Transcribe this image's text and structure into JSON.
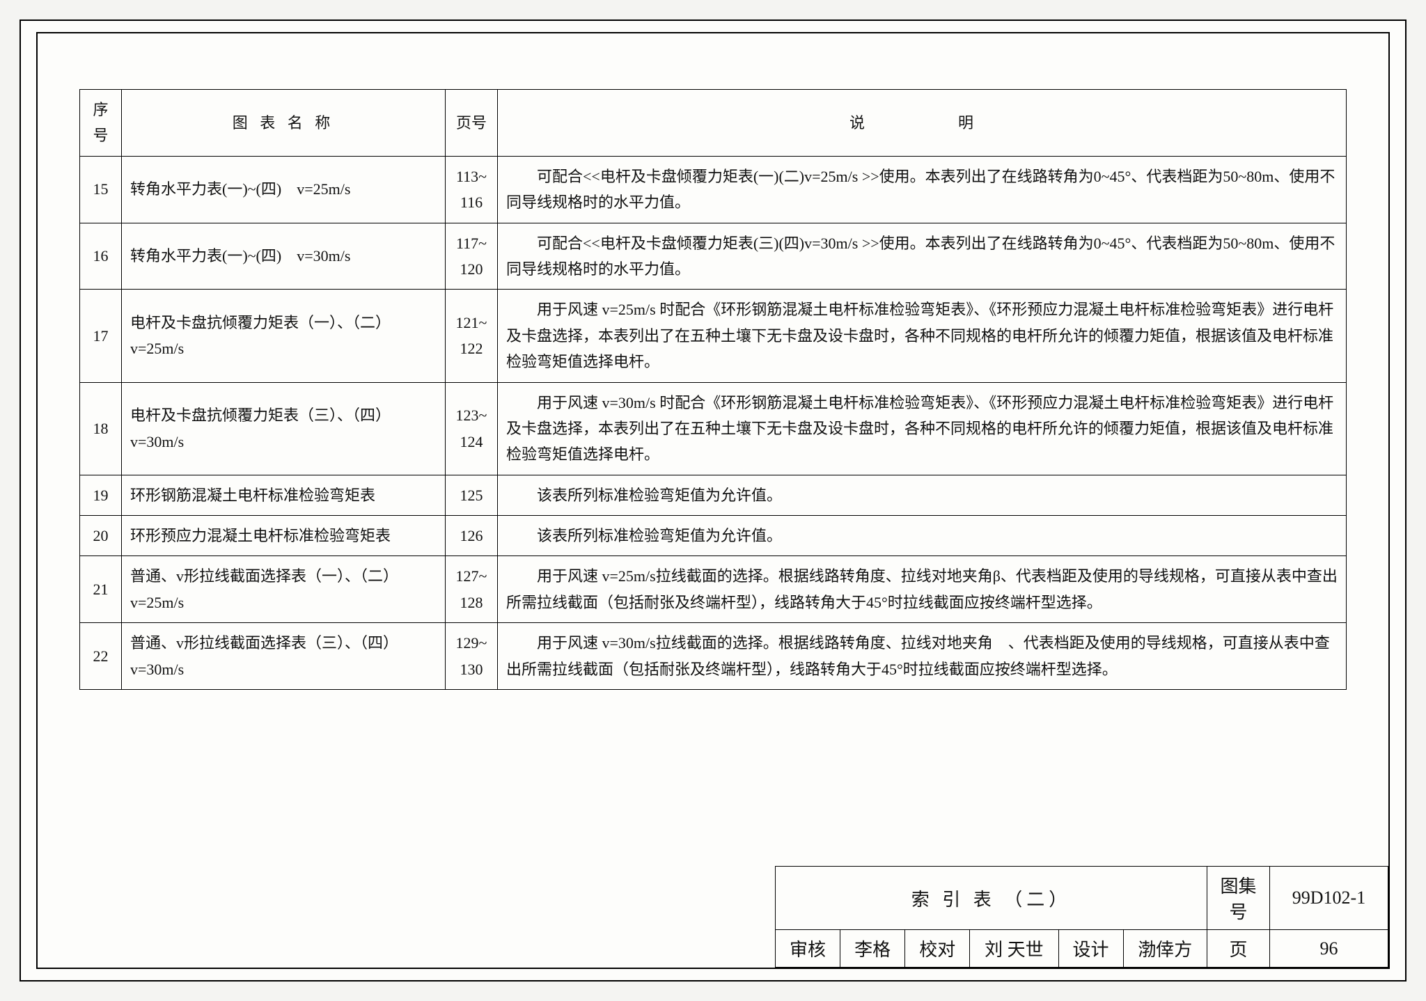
{
  "table": {
    "headers": {
      "seq": "序号",
      "name": "图 表 名 称",
      "page": "页号",
      "desc": "说　　明"
    },
    "rows": [
      {
        "seq": "15",
        "name": "转角水平力表(一)~(四)　v=25m/s",
        "page": "113~ 116",
        "desc": "可配合<<电杆及卡盘倾覆力矩表(一)(二)v=25m/s >>使用。本表列出了在线路转角为0~45°、代表档距为50~80m、使用不同导线规格时的水平力值。"
      },
      {
        "seq": "16",
        "name": "转角水平力表(一)~(四)　v=30m/s",
        "page": "117~ 120",
        "desc": "可配合<<电杆及卡盘倾覆力矩表(三)(四)v=30m/s >>使用。本表列出了在线路转角为0~45°、代表档距为50~80m、使用不同导线规格时的水平力值。"
      },
      {
        "seq": "17",
        "name": "电杆及卡盘抗倾覆力矩表（一）、（二）v=25m/s",
        "page": "121~ 122",
        "desc": "用于风速 v=25m/s 时配合《环形钢筋混凝土电杆标准检验弯矩表》、《环形预应力混凝土电杆标准检验弯矩表》进行电杆及卡盘选择，本表列出了在五种土壤下无卡盘及设卡盘时，各种不同规格的电杆所允许的倾覆力矩值，根据该值及电杆标准检验弯矩值选择电杆。"
      },
      {
        "seq": "18",
        "name": "电杆及卡盘抗倾覆力矩表（三）、（四）v=30m/s",
        "page": "123~ 124",
        "desc": "用于风速 v=30m/s 时配合《环形钢筋混凝土电杆标准检验弯矩表》、《环形预应力混凝土电杆标准检验弯矩表》进行电杆及卡盘选择，本表列出了在五种土壤下无卡盘及设卡盘时，各种不同规格的电杆所允许的倾覆力矩值，根据该值及电杆标准检验弯矩值选择电杆。"
      },
      {
        "seq": "19",
        "name": "环形钢筋混凝土电杆标准检验弯矩表",
        "page": "125",
        "desc": "该表所列标准检验弯矩值为允许值。"
      },
      {
        "seq": "20",
        "name": "环形预应力混凝土电杆标准检验弯矩表",
        "page": "126",
        "desc": "该表所列标准检验弯矩值为允许值。"
      },
      {
        "seq": "21",
        "name": "普通、v形拉线截面选择表（一）、（二）v=25m/s",
        "page": "127~ 128",
        "desc": "用于风速 v=25m/s拉线截面的选择。根据线路转角度、拉线对地夹角β、代表档距及使用的导线规格，可直接从表中查出所需拉线截面（包括耐张及终端杆型），线路转角大于45°时拉线截面应按终端杆型选择。"
      },
      {
        "seq": "22",
        "name": "普通、v形拉线截面选择表（三）、（四）v=30m/s",
        "page": "129~ 130",
        "desc": "用于风速 v=30m/s拉线截面的选择。根据线路转角度、拉线对地夹角　、代表档距及使用的导线规格，可直接从表中查出所需拉线截面（包括耐张及终端杆型），线路转角大于45°时拉线截面应按终端杆型选择。"
      }
    ]
  },
  "titleblock": {
    "title": "索 引 表 （二）",
    "drawing_label": "图集号",
    "drawing_no": "99D102-1",
    "review_label": "审核",
    "review_sig": "李格",
    "check_label": "校对",
    "check_sig": "刘 天世",
    "design_label": "设计",
    "design_sig": "渤倖方",
    "page_label": "页",
    "page_no": "96"
  }
}
